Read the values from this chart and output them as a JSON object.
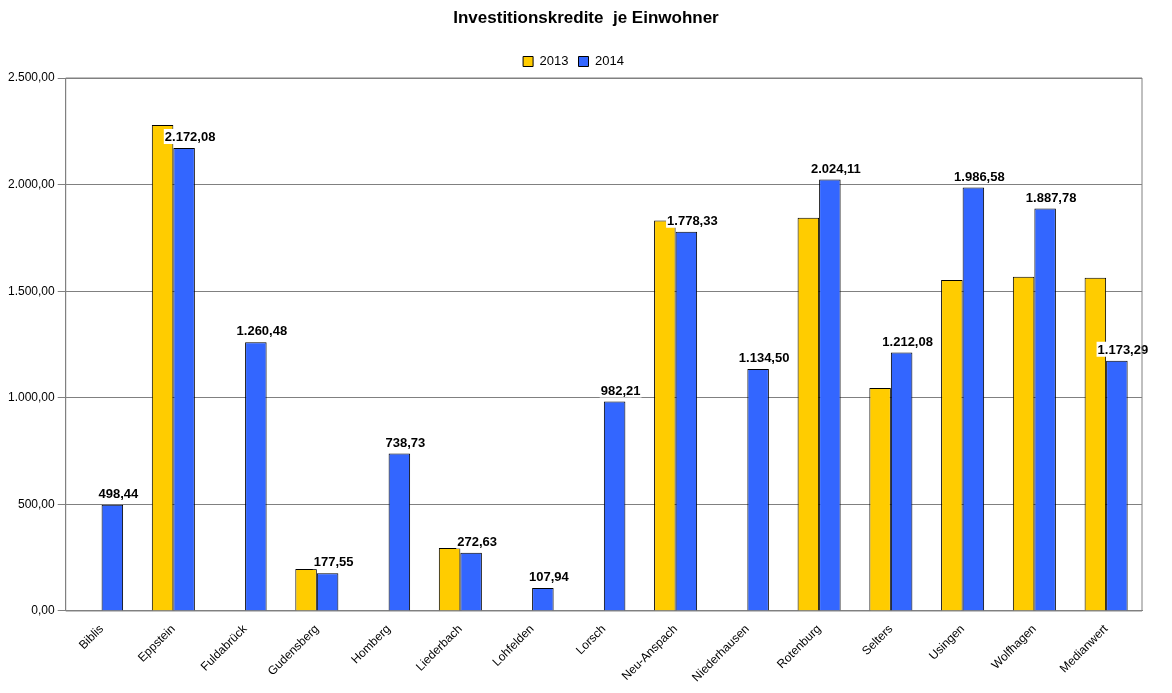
{
  "chart_data": {
    "type": "bar",
    "title": "Investitionskredite  je Einwohner",
    "categories": [
      "Biblis",
      "Eppstein",
      "Fuldabrück",
      "Gudensberg",
      "Homberg",
      "Liederbach",
      "Lohfelden",
      "Lorsch",
      "Neu-Anspach",
      "Niederhausen",
      "Rotenburg",
      "Selters",
      "Usingen",
      "Wolfhagen",
      "Medianwert"
    ],
    "series": [
      {
        "name": "2013",
        "color": "#ffcc00",
        "values": [
          null,
          2280,
          null,
          197,
          null,
          295,
          null,
          null,
          1832,
          null,
          1845,
          1046,
          1553,
          1568,
          1563
        ]
      },
      {
        "name": "2014",
        "color": "#3366ff",
        "values": [
          498.44,
          2172.08,
          1260.48,
          177.55,
          738.73,
          272.63,
          107.94,
          982.21,
          1778.33,
          1134.5,
          2024.11,
          1212.08,
          1986.58,
          1887.78,
          1173.29
        ],
        "value_labels": [
          "498,44",
          "2.172,08",
          "1.260,48",
          "177,55",
          "738,73",
          "272,63",
          "107,94",
          "982,21",
          "1.778,33",
          "1.134,50",
          "2.024,11",
          "1.212,08",
          "1.986,58",
          "1.887,78",
          "1.173,29"
        ]
      }
    ],
    "ylim": [
      0,
      2500
    ],
    "yticks": [
      {
        "value": 0,
        "label": "0,00"
      },
      {
        "value": 500,
        "label": "500,00"
      },
      {
        "value": 1000,
        "label": "1.000,00"
      },
      {
        "value": 1500,
        "label": "1.500,00"
      },
      {
        "value": 2000,
        "label": "2.000,00"
      },
      {
        "value": 2500,
        "label": "2.500,00"
      }
    ],
    "grid": "y",
    "legend": "top"
  }
}
